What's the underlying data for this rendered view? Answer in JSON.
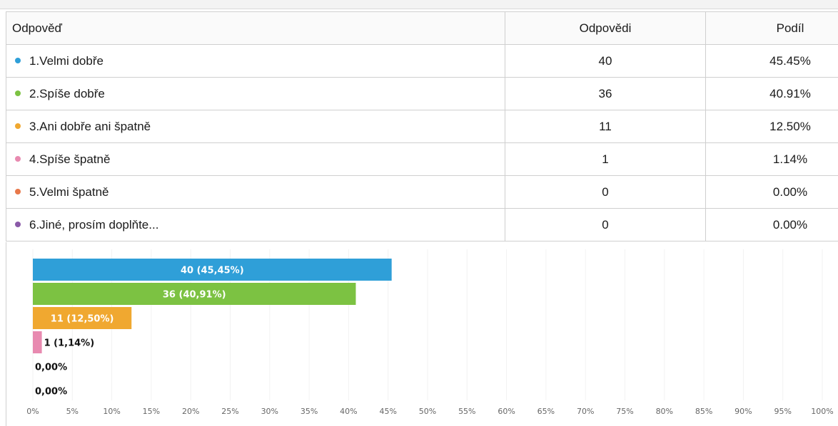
{
  "table": {
    "headers": {
      "answer": "Odpověď",
      "count": "Odpovědi",
      "share": "Podíl"
    },
    "rows": [
      {
        "label": "1.Velmi dobře",
        "count": "40",
        "share": "45.45%",
        "color": "#2f9fd8"
      },
      {
        "label": "2.Spíše dobře",
        "count": "36",
        "share": "40.91%",
        "color": "#7cc242"
      },
      {
        "label": "3.Ani dobře ani špatně",
        "count": "11",
        "share": "12.50%",
        "color": "#f0a830"
      },
      {
        "label": "4.Spíše špatně",
        "count": "1",
        "share": "1.14%",
        "color": "#e88ab0"
      },
      {
        "label": "5.Velmi špatně",
        "count": "0",
        "share": "0.00%",
        "color": "#e8784a"
      },
      {
        "label": "6.Jiné, prosím doplňte...",
        "count": "0",
        "share": "0.00%",
        "color": "#8a5aa8"
      }
    ]
  },
  "chart_data": {
    "type": "bar",
    "orientation": "horizontal",
    "categories": [
      "1.Velmi dobře",
      "2.Spíše dobře",
      "3.Ani dobře ani špatně",
      "4.Spíše špatně",
      "5.Velmi špatně",
      "6.Jiné, prosím doplňte..."
    ],
    "values": [
      45.45,
      40.91,
      12.5,
      1.14,
      0.0,
      0.0
    ],
    "data_labels": [
      "40 (45,45%)",
      "36 (40,91%)",
      "11 (12,50%)",
      "1 (1,14%)",
      "0,00%",
      "0,00%"
    ],
    "colors": [
      "#2f9fd8",
      "#7cc242",
      "#f0a830",
      "#e88ab0",
      "#e8784a",
      "#8a5aa8"
    ],
    "xlim": [
      0,
      100
    ],
    "xticks": [
      "0%",
      "5%",
      "10%",
      "15%",
      "20%",
      "25%",
      "30%",
      "35%",
      "40%",
      "45%",
      "50%",
      "55%",
      "60%",
      "65%",
      "70%",
      "75%",
      "80%",
      "85%",
      "90%",
      "95%",
      "100%"
    ],
    "title": "",
    "xlabel": "",
    "ylabel": ""
  }
}
